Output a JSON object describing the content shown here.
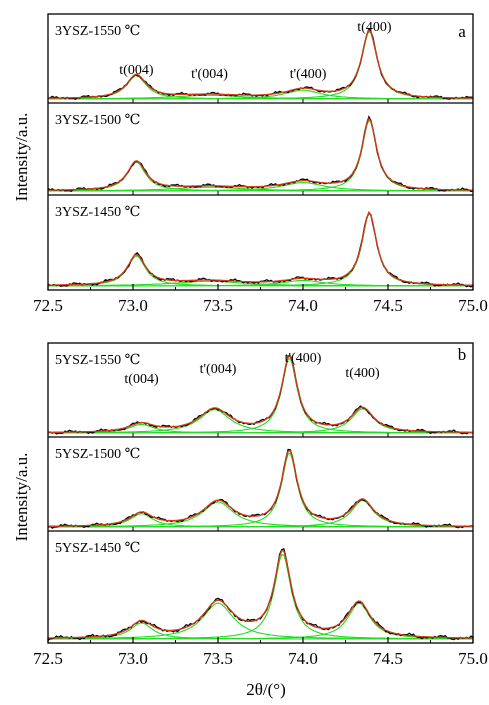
{
  "figure": {
    "x_axis_label": "2θ/(°)",
    "y_axis_label": "Intensity/a.u."
  },
  "chart_data": [
    {
      "type": "line",
      "panel_letter": "a",
      "xlim": [
        72.5,
        75.0
      ],
      "x_ticks": [
        "72.5",
        "73.0",
        "73.5",
        "74.0",
        "74.5",
        "75.0"
      ],
      "ylabel": "Intensity/a.u.",
      "colors": {
        "measured": "#000000",
        "fit": "#d63a1a",
        "components": "#22dd22"
      },
      "annotations": [
        {
          "text": "t(004)",
          "x": 73.02,
          "panel": 0
        },
        {
          "text": "t'(004)",
          "x": 73.45,
          "panel": 0
        },
        {
          "text": "t'(400)",
          "x": 74.03,
          "panel": 0
        },
        {
          "text": "t(400)",
          "x": 74.42,
          "panel": 0
        }
      ],
      "subplots": [
        {
          "label": "3YSZ-1550 ℃",
          "ylim": [
            0,
            1.1
          ],
          "peaks": [
            {
              "name": "t(004)",
              "center": 73.02,
              "height": 0.32,
              "width": 0.07
            },
            {
              "name": "t'(004)",
              "center": 73.45,
              "height": 0.05,
              "width": 0.25
            },
            {
              "name": "t'(400)",
              "center": 74.0,
              "height": 0.12,
              "width": 0.13
            },
            {
              "name": "t(400)",
              "center": 74.39,
              "height": 0.92,
              "width": 0.055
            }
          ]
        },
        {
          "label": "3YSZ-1500 ℃",
          "ylim": [
            0,
            1.1
          ],
          "peaks": [
            {
              "name": "t(004)",
              "center": 73.02,
              "height": 0.38,
              "width": 0.065
            },
            {
              "name": "t'(004)",
              "center": 73.45,
              "height": 0.05,
              "width": 0.25
            },
            {
              "name": "t'(400)",
              "center": 74.0,
              "height": 0.11,
              "width": 0.15
            },
            {
              "name": "t(400)",
              "center": 74.39,
              "height": 0.93,
              "width": 0.052
            }
          ]
        },
        {
          "label": "3YSZ-1450 ℃",
          "ylim": [
            0,
            1.1
          ],
          "peaks": [
            {
              "name": "t(004)",
              "center": 73.02,
              "height": 0.38,
              "width": 0.065
            },
            {
              "name": "t'(004)",
              "center": 73.45,
              "height": 0.06,
              "width": 0.25
            },
            {
              "name": "t'(400)",
              "center": 74.0,
              "height": 0.07,
              "width": 0.15
            },
            {
              "name": "t(400)",
              "center": 74.39,
              "height": 0.92,
              "width": 0.052
            }
          ]
        }
      ]
    },
    {
      "type": "line",
      "panel_letter": "b",
      "xlim": [
        72.5,
        75.0
      ],
      "x_ticks": [
        "72.5",
        "73.0",
        "73.5",
        "74.0",
        "74.5",
        "75.0"
      ],
      "ylabel": "Intensity/a.u.",
      "colors": {
        "measured": "#000000",
        "fit": "#d63a1a",
        "components": "#22dd22"
      },
      "annotations": [
        {
          "text": "t(004)",
          "x": 73.05,
          "panel": 0
        },
        {
          "text": "t'(004)",
          "x": 73.5,
          "panel": 0
        },
        {
          "text": "t'(400)",
          "x": 74.0,
          "panel": 0
        },
        {
          "text": "t(400)",
          "x": 74.35,
          "panel": 0
        }
      ],
      "subplots": [
        {
          "label": "5YSZ-1550 ℃",
          "ylim": [
            0,
            1.1
          ],
          "peaks": [
            {
              "name": "t(004)",
              "center": 73.05,
              "height": 0.11,
              "width": 0.09
            },
            {
              "name": "t'(004)",
              "center": 73.48,
              "height": 0.3,
              "width": 0.11
            },
            {
              "name": "t'(400)",
              "center": 73.92,
              "height": 0.96,
              "width": 0.055
            },
            {
              "name": "t(400)",
              "center": 74.35,
              "height": 0.31,
              "width": 0.08
            }
          ]
        },
        {
          "label": "5YSZ-1500 ℃",
          "ylim": [
            0,
            1.1
          ],
          "peaks": [
            {
              "name": "t(004)",
              "center": 73.05,
              "height": 0.17,
              "width": 0.08
            },
            {
              "name": "t'(004)",
              "center": 73.5,
              "height": 0.32,
              "width": 0.11
            },
            {
              "name": "t'(400)",
              "center": 73.92,
              "height": 0.95,
              "width": 0.055
            },
            {
              "name": "t(400)",
              "center": 74.35,
              "height": 0.34,
              "width": 0.08
            }
          ]
        },
        {
          "label": "5YSZ-1450 ℃",
          "ylim": [
            0,
            1.1
          ],
          "peaks": [
            {
              "name": "t(004)",
              "center": 73.05,
              "height": 0.17,
              "width": 0.08
            },
            {
              "name": "t'(004)",
              "center": 73.5,
              "height": 0.38,
              "width": 0.11
            },
            {
              "name": "t'(400)",
              "center": 73.88,
              "height": 0.9,
              "width": 0.06
            },
            {
              "name": "t(400)",
              "center": 74.33,
              "height": 0.38,
              "width": 0.08
            }
          ]
        }
      ]
    }
  ]
}
